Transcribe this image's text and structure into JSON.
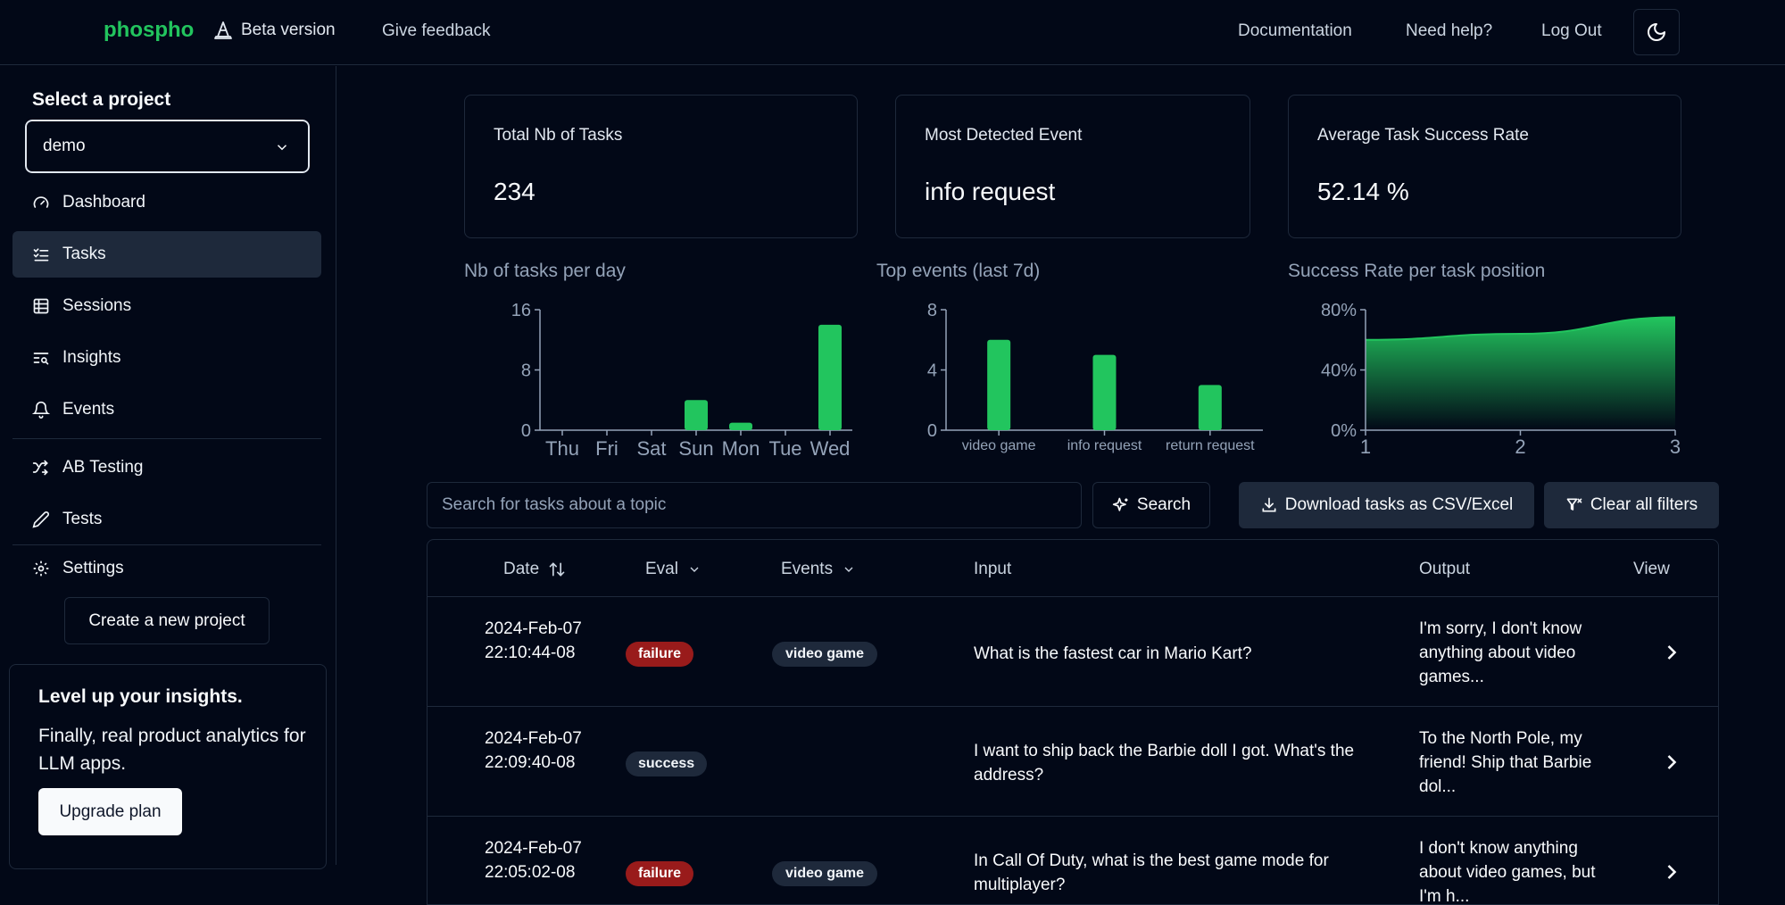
{
  "header": {
    "brand": "phospho",
    "beta_label": "Beta version",
    "feedback_label": "Give feedback",
    "nav": [
      "Documentation",
      "Need help?",
      "Log Out"
    ]
  },
  "sidebar": {
    "select_label": "Select a project",
    "project": "demo",
    "items": [
      {
        "label": "Dashboard",
        "icon": "gauge-icon"
      },
      {
        "label": "Tasks",
        "icon": "list-checks-icon"
      },
      {
        "label": "Sessions",
        "icon": "table-icon"
      },
      {
        "label": "Insights",
        "icon": "text-search-icon"
      },
      {
        "label": "Events",
        "icon": "bell-icon"
      },
      {
        "label": "AB Testing",
        "icon": "shuffle-icon"
      },
      {
        "label": "Tests",
        "icon": "pencil-icon"
      },
      {
        "label": "Settings",
        "icon": "gear-icon"
      }
    ],
    "create_label": "Create a new project",
    "upsell": {
      "title": "Level up your insights.",
      "text": "Finally, real product analytics for LLM apps.",
      "button": "Upgrade plan"
    }
  },
  "cards": [
    {
      "label": "Total Nb of Tasks",
      "value": "234"
    },
    {
      "label": "Most Detected Event",
      "value": "info request"
    },
    {
      "label": "Average Task Success Rate",
      "value": "52.14 %"
    }
  ],
  "chart_data": [
    {
      "type": "bar",
      "title": "Nb of tasks per day",
      "categories": [
        "Thu",
        "Fri",
        "Sat",
        "Sun",
        "Mon",
        "Tue",
        "Wed"
      ],
      "values": [
        0,
        0,
        0,
        4,
        1,
        0,
        14
      ],
      "yticks": [
        "0",
        "8",
        "16"
      ],
      "ylim": [
        0,
        16
      ]
    },
    {
      "type": "bar",
      "title": "Top events (last 7d)",
      "categories": [
        "video game",
        "info request",
        "return request"
      ],
      "values": [
        6,
        5,
        3
      ],
      "yticks": [
        "0",
        "4",
        "8"
      ],
      "ylim": [
        0,
        8
      ]
    },
    {
      "type": "area",
      "title": "Success Rate per task position",
      "x": [
        1,
        2,
        3
      ],
      "values": [
        0.6,
        0.64,
        0.75
      ],
      "xticks": [
        "1",
        "2",
        "3"
      ],
      "yticks": [
        "0%",
        "40%",
        "80%"
      ],
      "ylim": [
        0,
        0.8
      ]
    }
  ],
  "toolbar": {
    "search_placeholder": "Search for tasks about a topic",
    "search_button": "Search",
    "download_button": "Download tasks as CSV/Excel",
    "clear_button": "Clear all filters"
  },
  "table": {
    "headers": {
      "date": "Date",
      "eval": "Eval",
      "events": "Events",
      "input": "Input",
      "output": "Output",
      "view": "View"
    },
    "rows": [
      {
        "date": "2024-Feb-07 22:10:44-08",
        "eval": "failure",
        "event": "video game",
        "input": "What is the fastest car in Mario Kart?",
        "output": "I'm sorry, I don't know anything about video games..."
      },
      {
        "date": "2024-Feb-07 22:09:40-08",
        "eval": "success",
        "event": "",
        "input": "I want to ship back the Barbie doll I got. What's the address?",
        "output": "To the North Pole, my friend! Ship that Barbie dol..."
      },
      {
        "date": "2024-Feb-07 22:05:02-08",
        "eval": "failure",
        "event": "video game",
        "input": "In Call Of Duty, what is the best game mode for multiplayer?",
        "output": "I don't know anything about video games, but I'm h..."
      }
    ]
  },
  "colors": {
    "accent": "#22c55e",
    "failure": "#991b1b",
    "background": "#020817"
  }
}
